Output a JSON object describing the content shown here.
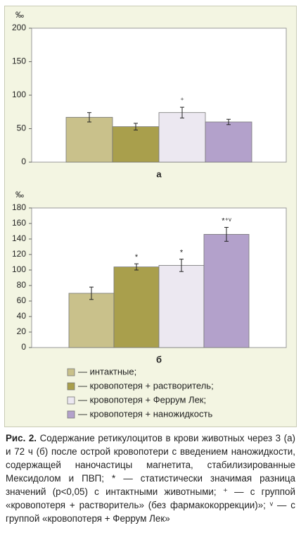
{
  "chart_data": [
    {
      "type": "bar",
      "y_unit": "‰",
      "xlabel": "а",
      "categories": [
        null,
        null,
        null,
        null
      ],
      "values": [
        67,
        53,
        74,
        60
      ],
      "errors": [
        7,
        5,
        8,
        4
      ],
      "annotations": [
        null,
        null,
        "⁺",
        null
      ],
      "ylim": [
        0,
        200
      ],
      "yticks": [
        0,
        50,
        100,
        150,
        200
      ],
      "grid": false
    },
    {
      "type": "bar",
      "y_unit": "‰",
      "xlabel": "б",
      "categories": [
        null,
        null,
        null,
        null
      ],
      "values": [
        70,
        104,
        106,
        146
      ],
      "errors": [
        8,
        4,
        8,
        9
      ],
      "annotations": [
        null,
        "*",
        "*",
        "*⁺ᵛ"
      ],
      "ylim": [
        0,
        180
      ],
      "yticks": [
        0,
        20,
        40,
        60,
        80,
        100,
        120,
        140,
        160,
        180
      ],
      "grid": false
    }
  ],
  "legend": [
    {
      "name": "— интактные;",
      "color": "#c9c18b"
    },
    {
      "name": "— кровопотеря + растворитель;",
      "color": "#a99f4c"
    },
    {
      "name": "— кровопотеря + Феррум Лек;",
      "color": "#ece8f1"
    },
    {
      "name": "— кровопотеря + наножидкость",
      "color": "#b3a1cb"
    }
  ],
  "caption_label": "Рис. 2.",
  "caption": "Содержание ретикулоцитов в крови животных через 3 (а) и 72 ч (б) после острой кровопотери с введением наножидкости, содержащей наночастицы магнетита, стабилизированные Мексидолом и ПВП; * — статистически значимая разница значений (p<0,05) с интактными животными; ⁺ — с группой «кровопотеря + растворитель» (без фармакокоррекции)»; ᵛ — с группой «кровопотеря + Феррум Лек»"
}
